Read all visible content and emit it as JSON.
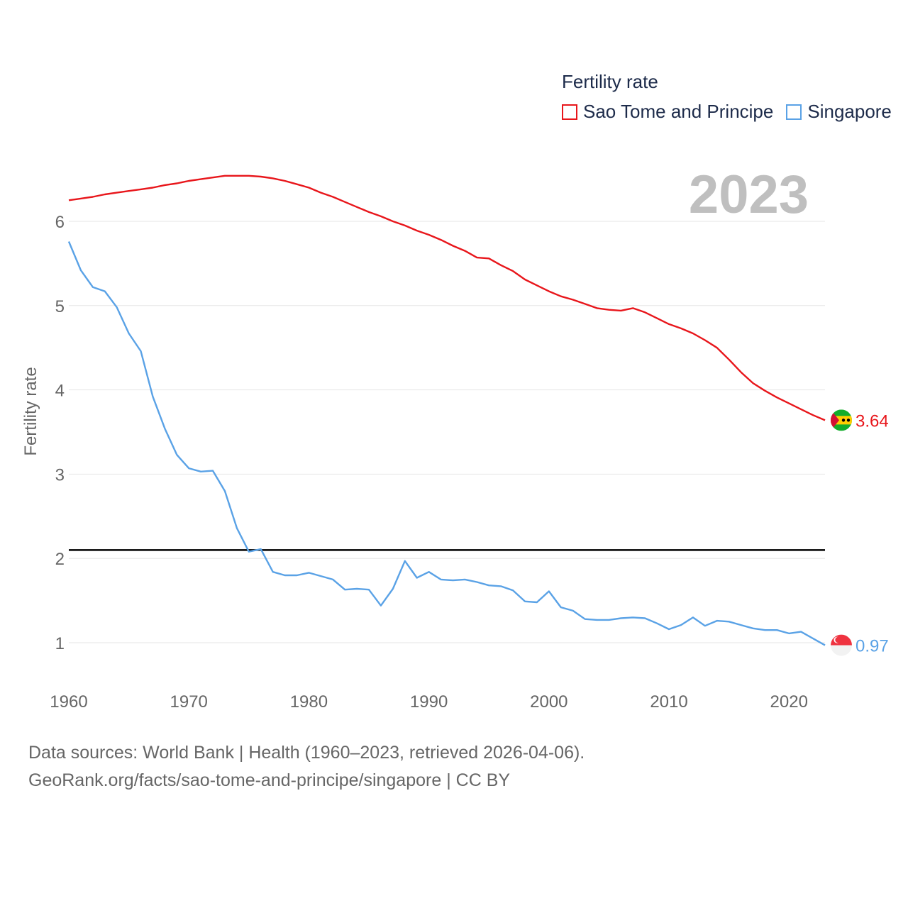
{
  "legend": {
    "title": "Fertility rate",
    "items": [
      {
        "label": "Sao Tome and Principe",
        "color": "#e8161b"
      },
      {
        "label": "Singapore",
        "color": "#5aa2e6"
      }
    ]
  },
  "year_label": "2023",
  "footer": {
    "line1": "Data sources: World Bank | Health (1960–2023, retrieved 2026-04-06).",
    "line2": "GeoRank.org/facts/sao-tome-and-principe/singapore | CC BY"
  },
  "chart_data": {
    "type": "line",
    "title": "Fertility rate",
    "xlabel": "",
    "ylabel": "Fertility rate",
    "xlim": [
      1960,
      2023
    ],
    "ylim": [
      0.5,
      6.8
    ],
    "x_ticks": [
      1960,
      1970,
      1980,
      1990,
      2000,
      2010,
      2020
    ],
    "y_ticks": [
      1,
      2,
      3,
      4,
      5,
      6
    ],
    "grid": true,
    "reference_line": {
      "y": 2.1,
      "color": "#000000"
    },
    "x": [
      1960,
      1961,
      1962,
      1963,
      1964,
      1965,
      1966,
      1967,
      1968,
      1969,
      1970,
      1971,
      1972,
      1973,
      1974,
      1975,
      1976,
      1977,
      1978,
      1979,
      1980,
      1981,
      1982,
      1983,
      1984,
      1985,
      1986,
      1987,
      1988,
      1989,
      1990,
      1991,
      1992,
      1993,
      1994,
      1995,
      1996,
      1997,
      1998,
      1999,
      2000,
      2001,
      2002,
      2003,
      2004,
      2005,
      2006,
      2007,
      2008,
      2009,
      2010,
      2011,
      2012,
      2013,
      2014,
      2015,
      2016,
      2017,
      2018,
      2019,
      2020,
      2021,
      2022,
      2023
    ],
    "series": [
      {
        "name": "Sao Tome and Principe",
        "color": "#e8161b",
        "end_label": "3.64",
        "values": [
          6.25,
          6.27,
          6.29,
          6.32,
          6.34,
          6.36,
          6.38,
          6.4,
          6.43,
          6.45,
          6.48,
          6.5,
          6.52,
          6.54,
          6.54,
          6.54,
          6.53,
          6.51,
          6.48,
          6.44,
          6.4,
          6.34,
          6.29,
          6.23,
          6.17,
          6.11,
          6.06,
          6.0,
          5.95,
          5.89,
          5.84,
          5.78,
          5.71,
          5.65,
          5.57,
          5.56,
          5.48,
          5.41,
          5.31,
          5.24,
          5.17,
          5.11,
          5.07,
          5.02,
          4.97,
          4.95,
          4.94,
          4.97,
          4.92,
          4.85,
          4.78,
          4.73,
          4.67,
          4.59,
          4.5,
          4.36,
          4.21,
          4.08,
          3.99,
          3.91,
          3.84,
          3.77,
          3.7,
          3.64
        ]
      },
      {
        "name": "Singapore",
        "color": "#5aa2e6",
        "end_label": "0.97",
        "values": [
          5.76,
          5.42,
          5.22,
          5.17,
          4.98,
          4.67,
          4.46,
          3.92,
          3.54,
          3.23,
          3.07,
          3.03,
          3.04,
          2.8,
          2.36,
          2.08,
          2.11,
          1.84,
          1.8,
          1.8,
          1.83,
          1.79,
          1.75,
          1.63,
          1.64,
          1.63,
          1.44,
          1.64,
          1.97,
          1.77,
          1.84,
          1.75,
          1.74,
          1.75,
          1.72,
          1.68,
          1.67,
          1.62,
          1.49,
          1.48,
          1.61,
          1.42,
          1.38,
          1.28,
          1.27,
          1.27,
          1.29,
          1.3,
          1.29,
          1.23,
          1.16,
          1.21,
          1.3,
          1.2,
          1.26,
          1.25,
          1.21,
          1.17,
          1.15,
          1.15,
          1.11,
          1.13,
          1.05,
          0.97
        ]
      }
    ]
  }
}
